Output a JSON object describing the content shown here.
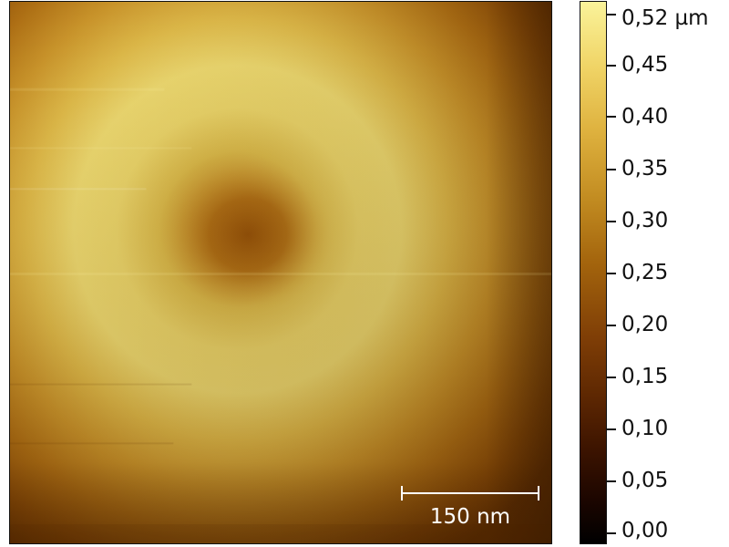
{
  "image": {
    "description_name": "afm-height-map",
    "scale_bar": {
      "label": "150 nm"
    }
  },
  "colorbar": {
    "labels": [
      "0,52 µm",
      "0,45",
      "0,40",
      "0,35",
      "0,30",
      "0,25",
      "0,20",
      "0,15",
      "0,10",
      "0,05",
      "0,00"
    ],
    "colors": {
      "min": "#000000",
      "low": "#5d2702",
      "mid": "#a4650d",
      "high": "#deb13e",
      "max": "#faf39a"
    }
  }
}
